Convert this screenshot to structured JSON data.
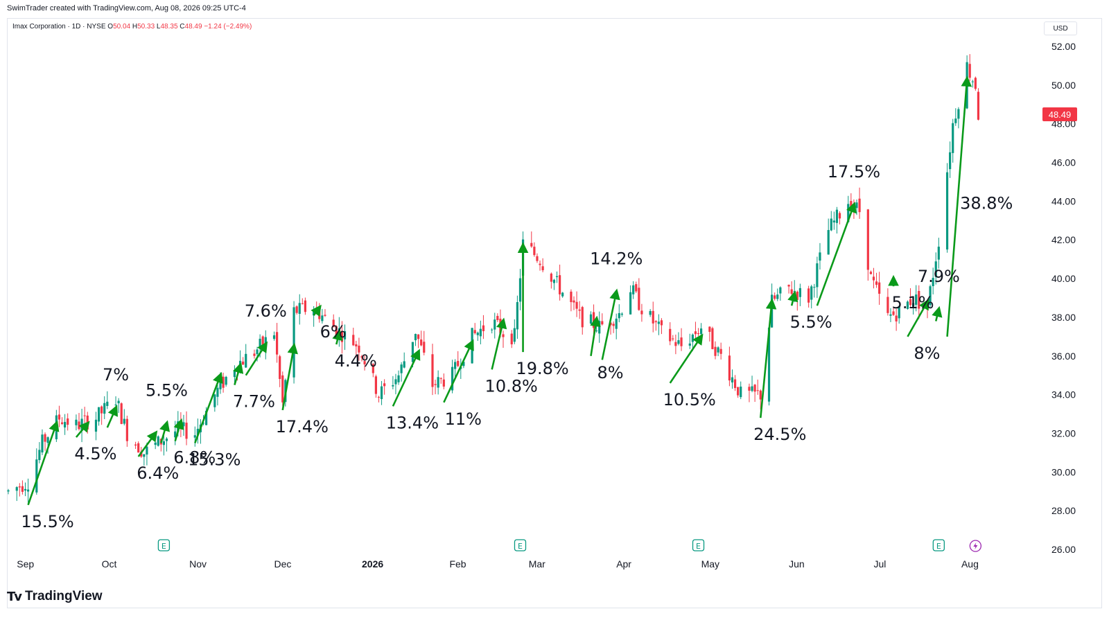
{
  "header": {
    "created_by": "SwimTrader created with TradingView.com, Aug 08, 2026 09:25 UTC-4"
  },
  "legend": {
    "symbol": "Imax Corporation · 1D · NYSE",
    "open_label": "O",
    "open": "50.04",
    "high_label": "H",
    "high": "50.33",
    "low_label": "L",
    "low": "48.35",
    "close_label": "C",
    "close": "48.49",
    "change": "−1.24 (−2.49%)"
  },
  "currency": "USD",
  "last_price_tag": "48.49",
  "footer": {
    "logo_text": "TradingView"
  },
  "colors": {
    "up": "#089981",
    "down": "#f23645",
    "arrow": "#0a9a1a",
    "earnings": "#089981",
    "dividend": "#9c27b0"
  },
  "chart_data": {
    "type": "candlestick",
    "y_ticks": [
      "26.00",
      "28.00",
      "30.00",
      "32.00",
      "34.00",
      "36.00",
      "38.00",
      "40.00",
      "42.00",
      "44.00",
      "46.00",
      "48.00",
      "50.00",
      "52.00"
    ],
    "ylim": [
      26,
      52
    ],
    "x_labels": [
      {
        "label": "Sep",
        "date": "2025-09-01"
      },
      {
        "label": "Oct",
        "date": "2025-10-01"
      },
      {
        "label": "Nov",
        "date": "2025-11-01"
      },
      {
        "label": "Dec",
        "date": "2025-12-01"
      },
      {
        "label": "2026",
        "date": "2026-01-01",
        "bold": true
      },
      {
        "label": "Feb",
        "date": "2026-02-01"
      },
      {
        "label": "Mar",
        "date": "2026-03-01"
      },
      {
        "label": "Apr",
        "date": "2026-04-01"
      },
      {
        "label": "May",
        "date": "2026-05-01"
      },
      {
        "label": "Jun",
        "date": "2026-06-01"
      },
      {
        "label": "Jul",
        "date": "2026-07-01"
      },
      {
        "label": "Aug",
        "date": "2026-08-01"
      }
    ],
    "xlim": [
      "2025-08-29",
      "2026-08-14"
    ],
    "price_path": [
      [
        "2025-08-29",
        29.0
      ],
      [
        "2025-09-05",
        29.5
      ],
      [
        "2025-09-10",
        31.5
      ],
      [
        "2025-09-16",
        32.8
      ],
      [
        "2025-09-22",
        32.4
      ],
      [
        "2025-09-29",
        32.8
      ],
      [
        "2025-10-06",
        33.8
      ],
      [
        "2025-10-10",
        32.0
      ],
      [
        "2025-10-16",
        31.0
      ],
      [
        "2025-10-22",
        31.6
      ],
      [
        "2025-10-28",
        32.2
      ],
      [
        "2025-11-03",
        32.0
      ],
      [
        "2025-11-10",
        34.0
      ],
      [
        "2025-11-17",
        35.5
      ],
      [
        "2025-11-24",
        36.2
      ],
      [
        "2025-12-01",
        37.2
      ],
      [
        "2025-12-04",
        33.5
      ],
      [
        "2025-12-08",
        38.3
      ],
      [
        "2025-12-15",
        38.5
      ],
      [
        "2025-12-22",
        37.5
      ],
      [
        "2025-12-31",
        36.5
      ],
      [
        "2026-01-07",
        34.0
      ],
      [
        "2026-01-14",
        35.0
      ],
      [
        "2026-01-20",
        37.3
      ],
      [
        "2026-01-26",
        34.5
      ],
      [
        "2026-02-02",
        35.0
      ],
      [
        "2026-02-09",
        37.0
      ],
      [
        "2026-02-16",
        37.8
      ],
      [
        "2026-02-20",
        37.2
      ],
      [
        "2026-02-24",
        37.0
      ],
      [
        "2026-02-27",
        41.8
      ],
      [
        "2026-03-05",
        41.0
      ],
      [
        "2026-03-12",
        39.5
      ],
      [
        "2026-03-19",
        38.0
      ],
      [
        "2026-03-26",
        37.5
      ],
      [
        "2026-04-02",
        38.2
      ],
      [
        "2026-04-06",
        39.5
      ],
      [
        "2026-04-10",
        38.5
      ],
      [
        "2026-04-17",
        37.2
      ],
      [
        "2026-04-24",
        36.5
      ],
      [
        "2026-05-01",
        37.5
      ],
      [
        "2026-05-08",
        36.0
      ],
      [
        "2026-05-15",
        34.0
      ],
      [
        "2026-05-22",
        34.0
      ],
      [
        "2026-05-26",
        38.8
      ],
      [
        "2026-06-01",
        39.5
      ],
      [
        "2026-06-08",
        39.0
      ],
      [
        "2026-06-15",
        42.5
      ],
      [
        "2026-06-22",
        44.0
      ],
      [
        "2026-06-26",
        43.5
      ],
      [
        "2026-06-30",
        40.0
      ],
      [
        "2026-07-06",
        38.0
      ],
      [
        "2026-07-10",
        38.3
      ],
      [
        "2026-07-15",
        39.0
      ],
      [
        "2026-07-20",
        38.5
      ],
      [
        "2026-07-24",
        42.0
      ],
      [
        "2026-07-29",
        48.0
      ],
      [
        "2026-08-03",
        51.0
      ],
      [
        "2026-08-06",
        50.0
      ],
      [
        "2026-08-07",
        48.49
      ]
    ],
    "arrows": [
      {
        "from": [
          "2025-09-05",
          28.3
        ],
        "to": [
          "2025-09-15",
          32.5
        ],
        "label": "15.5%",
        "label_pos": "below"
      },
      {
        "from": [
          "2025-09-22",
          31.8
        ],
        "to": [
          "2025-09-26",
          32.5
        ],
        "label": "4.5%",
        "label_pos": "below"
      },
      {
        "from": [
          "2025-10-03",
          32.3
        ],
        "to": [
          "2025-10-06",
          33.3
        ],
        "label": "7%",
        "label_pos": "above"
      },
      {
        "from": [
          "2025-10-14",
          30.8
        ],
        "to": [
          "2025-10-20",
          32.0
        ],
        "label": "6.4%",
        "label_pos": "below"
      },
      {
        "from": [
          "2025-10-22",
          31.5
        ],
        "to": [
          "2025-10-24",
          32.5
        ],
        "label": "5.5%",
        "label_pos": "above"
      },
      {
        "from": [
          "2025-10-27",
          31.6
        ],
        "to": [
          "2025-10-29",
          32.6
        ],
        "label": "6.8%",
        "label_pos": "below"
      },
      {
        "from": [
          "2025-11-03",
          31.5
        ],
        "to": [
          "2025-11-12",
          35.0
        ],
        "label": "15.3%",
        "label_pos": "below"
      },
      {
        "from": [
          "2025-11-17",
          34.5
        ],
        "to": [
          "2025-11-19",
          35.5
        ],
        "label": "7.7%",
        "label_pos": "below"
      },
      {
        "from": [
          "2025-11-21",
          35.0
        ],
        "to": [
          "2025-11-28",
          36.6
        ],
        "label": "7.6%",
        "label_pos": "above"
      },
      {
        "from": [
          "2025-12-04",
          33.2
        ],
        "to": [
          "2025-12-08",
          36.5
        ],
        "label": "17.4%",
        "label_pos": "below"
      },
      {
        "from": [
          "2025-12-15",
          38.1
        ],
        "to": [
          "2025-12-17",
          38.5
        ],
        "label": "6%",
        "label_pos": "below"
      },
      {
        "from": [
          "2025-12-23",
          36.6
        ],
        "to": [
          "2025-12-24",
          37.2
        ],
        "label": "4.4%",
        "label_pos": "below"
      },
      {
        "from": [
          "2026-01-12",
          33.4
        ],
        "to": [
          "2026-01-21",
          36.2
        ],
        "label": "13.4%",
        "label_pos": "below"
      },
      {
        "from": [
          "2026-01-30",
          33.6
        ],
        "to": [
          "2026-02-09",
          36.7
        ],
        "label": "11%",
        "label_pos": "below"
      },
      {
        "from": [
          "2026-02-16",
          35.3
        ],
        "to": [
          "2026-02-20",
          37.8
        ],
        "label": "10.8%",
        "label_pos": "below"
      },
      {
        "from": [
          "2026-02-27",
          36.2
        ],
        "to": [
          "2026-02-27",
          41.7
        ],
        "label": "19.8%",
        "label_pos": "below"
      },
      {
        "from": [
          "2026-03-23",
          36.0
        ],
        "to": [
          "2026-03-25",
          37.9
        ],
        "label": "8%",
        "label_pos": "below"
      },
      {
        "from": [
          "2026-03-27",
          35.8
        ],
        "to": [
          "2026-04-01",
          39.3
        ],
        "label": "14.2%",
        "label_pos": "above"
      },
      {
        "from": [
          "2026-04-20",
          34.6
        ],
        "to": [
          "2026-05-01",
          37.0
        ],
        "label": "10.5%",
        "label_pos": "below"
      },
      {
        "from": [
          "2026-05-22",
          32.8
        ],
        "to": [
          "2026-05-26",
          38.8
        ],
        "label": "24.5%",
        "label_pos": "below"
      },
      {
        "from": [
          "2026-06-02",
          38.6
        ],
        "to": [
          "2026-06-03",
          39.2
        ],
        "label": "5.5%",
        "label_pos": "below"
      },
      {
        "from": [
          "2026-06-11",
          38.6
        ],
        "to": [
          "2026-06-24",
          43.8
        ],
        "label": "17.5%",
        "label_pos": "above"
      },
      {
        "from": [
          "2026-07-08",
          39.6
        ],
        "to": [
          "2026-07-08",
          40.0
        ],
        "label": "5.1%",
        "label_pos": "below"
      },
      {
        "from": [
          "2026-07-13",
          37.0
        ],
        "to": [
          "2026-07-20",
          38.8
        ],
        "label": "8%",
        "label_pos": "below"
      },
      {
        "from": [
          "2026-07-23",
          37.8
        ],
        "to": [
          "2026-07-24",
          38.4
        ],
        "label": "7.9%",
        "label_pos": "above"
      },
      {
        "from": [
          "2026-07-27",
          37.0
        ],
        "to": [
          "2026-08-03",
          50.3
        ],
        "label": "38.8%",
        "label_pos": "right"
      }
    ],
    "events": [
      {
        "type": "earnings",
        "date": "2025-10-23",
        "icon": "earnings-e-icon"
      },
      {
        "type": "earnings",
        "date": "2026-02-26",
        "icon": "earnings-e-icon"
      },
      {
        "type": "earnings",
        "date": "2026-04-30",
        "icon": "earnings-e-icon"
      },
      {
        "type": "earnings",
        "date": "2026-07-24",
        "icon": "earnings-e-icon"
      },
      {
        "type": "dividend",
        "date": "2026-08-06",
        "icon": "lightning-icon"
      }
    ]
  }
}
